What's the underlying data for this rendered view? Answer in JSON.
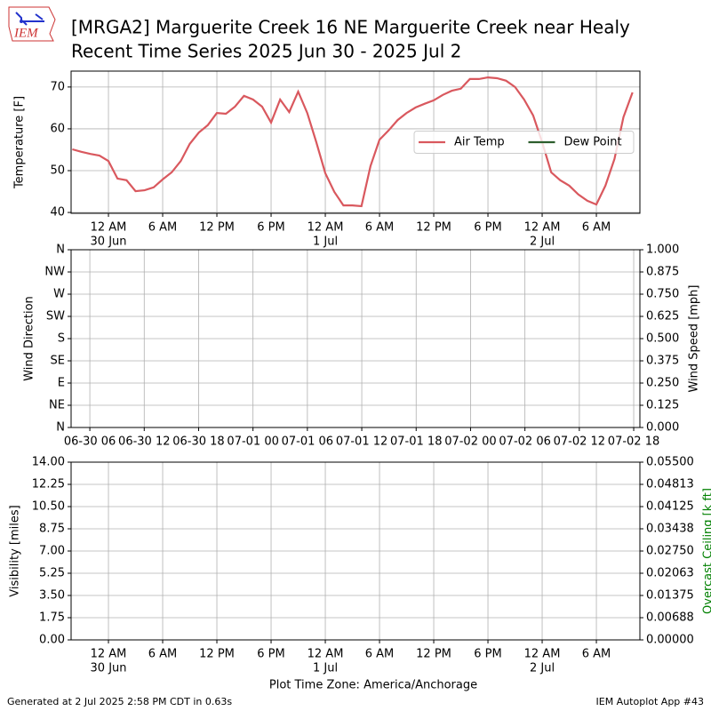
{
  "header": {
    "logo_text": "IEM",
    "title": "[MRGA2] Marguerite Creek 16 NE Marguerite Creek near Healy",
    "subtitle": "Recent Time Series 2025 Jun 30 - 2025 Jul 2"
  },
  "chart_data": [
    {
      "type": "line",
      "ylabel": "Temperature [F]",
      "ylim": [
        39.8,
        73.8
      ],
      "yticks": [
        40,
        50,
        60,
        70
      ],
      "grid": true,
      "legend": "center right",
      "xlim": [
        "2025-06-29 19:52",
        "2025-07-02 10:49"
      ],
      "xticks": [
        {
          "value": "2025-06-30 00:00",
          "label": "12 AM",
          "date": "30 Jun"
        },
        {
          "value": "2025-06-30 06:00",
          "label": "6 AM"
        },
        {
          "value": "2025-06-30 12:00",
          "label": "12 PM"
        },
        {
          "value": "2025-06-30 18:00",
          "label": "6 PM"
        },
        {
          "value": "2025-07-01 00:00",
          "label": "12 AM",
          "date": "1 Jul"
        },
        {
          "value": "2025-07-01 06:00",
          "label": "6 AM"
        },
        {
          "value": "2025-07-01 12:00",
          "label": "12 PM"
        },
        {
          "value": "2025-07-01 18:00",
          "label": "6 PM"
        },
        {
          "value": "2025-07-02 00:00",
          "label": "12 AM",
          "date": "2 Jul"
        },
        {
          "value": "2025-07-02 06:00",
          "label": "6 AM"
        }
      ],
      "x": [
        "2025-06-29 20:00",
        "2025-06-29 21:00",
        "2025-06-29 22:00",
        "2025-06-29 23:00",
        "2025-06-30 00:00",
        "2025-06-30 01:00",
        "2025-06-30 02:00",
        "2025-06-30 03:00",
        "2025-06-30 04:00",
        "2025-06-30 05:00",
        "2025-06-30 06:00",
        "2025-06-30 07:00",
        "2025-06-30 08:00",
        "2025-06-30 09:00",
        "2025-06-30 10:00",
        "2025-06-30 11:00",
        "2025-06-30 12:00",
        "2025-06-30 13:00",
        "2025-06-30 14:00",
        "2025-06-30 15:00",
        "2025-06-30 16:00",
        "2025-06-30 17:00",
        "2025-06-30 18:00",
        "2025-06-30 19:00",
        "2025-06-30 20:00",
        "2025-06-30 21:00",
        "2025-06-30 22:00",
        "2025-06-30 23:00",
        "2025-07-01 00:00",
        "2025-07-01 01:00",
        "2025-07-01 02:00",
        "2025-07-01 03:00",
        "2025-07-01 04:00",
        "2025-07-01 05:00",
        "2025-07-01 06:00",
        "2025-07-01 07:00",
        "2025-07-01 08:00",
        "2025-07-01 09:00",
        "2025-07-01 10:00",
        "2025-07-01 11:00",
        "2025-07-01 12:00",
        "2025-07-01 13:00",
        "2025-07-01 14:00",
        "2025-07-01 15:00",
        "2025-07-01 16:00",
        "2025-07-01 17:00",
        "2025-07-01 18:00",
        "2025-07-01 19:00",
        "2025-07-01 20:00",
        "2025-07-01 21:00",
        "2025-07-01 22:00",
        "2025-07-01 23:00",
        "2025-07-02 00:00",
        "2025-07-02 01:00",
        "2025-07-02 02:00",
        "2025-07-02 03:00",
        "2025-07-02 04:00",
        "2025-07-02 05:00",
        "2025-07-02 06:00",
        "2025-07-02 07:00",
        "2025-07-02 08:00",
        "2025-07-02 09:00",
        "2025-07-02 10:00"
      ],
      "series": [
        {
          "name": "Air Temp",
          "color": "#d9585e",
          "values": [
            55.1,
            54.5,
            54.0,
            53.6,
            52.3,
            48.1,
            47.7,
            45.1,
            45.3,
            46.0,
            47.9,
            49.6,
            52.3,
            56.4,
            59.1,
            60.9,
            63.8,
            63.6,
            65.3,
            67.9,
            67.0,
            65.3,
            61.5,
            67.0,
            64.0,
            68.9,
            63.8,
            56.8,
            49.4,
            44.9,
            41.7,
            41.7,
            41.5,
            51.1,
            57.4,
            59.6,
            62.1,
            63.8,
            65.1,
            66.0,
            66.8,
            68.1,
            69.1,
            69.6,
            71.9,
            71.9,
            72.3,
            72.1,
            71.5,
            70.0,
            67.0,
            63.2,
            56.8,
            49.6,
            47.7,
            46.4,
            44.3,
            42.8,
            41.9,
            46.4,
            52.8,
            62.8,
            68.7
          ]
        },
        {
          "name": "Dew Point",
          "color": "#2d5e2d",
          "values": [
            null,
            null,
            null,
            null,
            null,
            null,
            null,
            null,
            null,
            null,
            null,
            null,
            null,
            null,
            null,
            null,
            null,
            null,
            null,
            null,
            null,
            null,
            null,
            null,
            null,
            null,
            null,
            null,
            null,
            null,
            null,
            null,
            null,
            null,
            null,
            null,
            null,
            null,
            null,
            null,
            null,
            null,
            null,
            null,
            null,
            null,
            null,
            null,
            null,
            null,
            null,
            null,
            null,
            null,
            null,
            null,
            null,
            null,
            null,
            null,
            null,
            null,
            null
          ]
        }
      ]
    },
    {
      "type": "line",
      "ylabel": "Wind Direction",
      "y2label": "Wind Speed [mph]",
      "ylim": [
        0,
        360
      ],
      "y2lim": [
        0,
        1
      ],
      "grid": true,
      "yticks": [
        {
          "value": 0,
          "label": "N"
        },
        {
          "value": 45,
          "label": "NE"
        },
        {
          "value": 90,
          "label": "E"
        },
        {
          "value": 135,
          "label": "SE"
        },
        {
          "value": 180,
          "label": "S"
        },
        {
          "value": 225,
          "label": "SW"
        },
        {
          "value": 270,
          "label": "W"
        },
        {
          "value": 315,
          "label": "NW"
        },
        {
          "value": 360,
          "label": "N"
        }
      ],
      "y2ticks": [
        {
          "value": 0,
          "label": "0.000"
        },
        0.125,
        {
          "value": 0.25,
          "label": "0.250"
        },
        0.375,
        {
          "value": 0.5,
          "label": "0.500"
        },
        0.625,
        {
          "value": 0.75,
          "label": "0.750"
        },
        0.875,
        {
          "value": 1,
          "label": "1.000"
        }
      ],
      "xlim": [
        "2025-06-30 03:56",
        "2025-07-02 18:41"
      ],
      "xticks": [
        {
          "value": "2025-06-30 06:00",
          "label": "06-30 06"
        },
        {
          "value": "2025-06-30 12:00",
          "label": "06-30 12"
        },
        {
          "value": "2025-06-30 18:00",
          "label": "06-30 18"
        },
        {
          "value": "2025-07-01 00:00",
          "label": "07-01 00"
        },
        {
          "value": "2025-07-01 06:00",
          "label": "07-01 06"
        },
        {
          "value": "2025-07-01 12:00",
          "label": "07-01 12"
        },
        {
          "value": "2025-07-01 18:00",
          "label": "07-01 18"
        },
        {
          "value": "2025-07-02 00:00",
          "label": "07-02 00"
        },
        {
          "value": "2025-07-02 06:00",
          "label": "07-02 06"
        },
        {
          "value": "2025-07-02 12:00",
          "label": "07-02 12"
        },
        {
          "value": "2025-07-02 18:00",
          "label": "07-02 18"
        }
      ],
      "series": []
    },
    {
      "type": "line",
      "ylabel": "Visibility [miles]",
      "y2label": "Overcast Ceiling [k ft]",
      "y2label_color": "#008000",
      "xlabel": "Plot Time Zone: America/Anchorage",
      "ylim": [
        0,
        14
      ],
      "y2lim": [
        0,
        0.055
      ],
      "grid": true,
      "yticks": [
        {
          "value": 0,
          "label": "0.00"
        },
        1.75,
        {
          "value": 3.5,
          "label": "3.50"
        },
        5.25,
        {
          "value": 7,
          "label": "7.00"
        },
        8.75,
        {
          "value": 10.5,
          "label": "10.50"
        },
        12.25,
        {
          "value": 14,
          "label": "14.00"
        }
      ],
      "y2ticks": [
        {
          "value": 0,
          "label": "0.00000"
        },
        {
          "value": 0.006875,
          "label": "0.00688"
        },
        0.01375,
        {
          "value": 0.020625,
          "label": "0.02063"
        },
        {
          "value": 0.0275,
          "label": "0.02750"
        },
        {
          "value": 0.034375,
          "label": "0.03438"
        },
        0.04125,
        {
          "value": 0.048125,
          "label": "0.04813"
        },
        {
          "value": 0.055,
          "label": "0.05500"
        }
      ],
      "xlim": [
        "2025-06-29 19:52",
        "2025-07-02 10:49"
      ],
      "xticks": [
        {
          "value": "2025-06-30 00:00",
          "label": "12 AM",
          "date": "30 Jun"
        },
        {
          "value": "2025-06-30 06:00",
          "label": "6 AM"
        },
        {
          "value": "2025-06-30 12:00",
          "label": "12 PM"
        },
        {
          "value": "2025-06-30 18:00",
          "label": "6 PM"
        },
        {
          "value": "2025-07-01 00:00",
          "label": "12 AM",
          "date": "1 Jul"
        },
        {
          "value": "2025-07-01 06:00",
          "label": "6 AM"
        },
        {
          "value": "2025-07-01 12:00",
          "label": "12 PM"
        },
        {
          "value": "2025-07-01 18:00",
          "label": "6 PM"
        },
        {
          "value": "2025-07-02 00:00",
          "label": "12 AM",
          "date": "2 Jul"
        },
        {
          "value": "2025-07-02 06:00",
          "label": "6 AM"
        }
      ],
      "series": []
    }
  ],
  "footer": {
    "left": "Generated at 2 Jul 2025 2:58 PM CDT in 0.63s",
    "right": "IEM Autoplot App #43"
  }
}
